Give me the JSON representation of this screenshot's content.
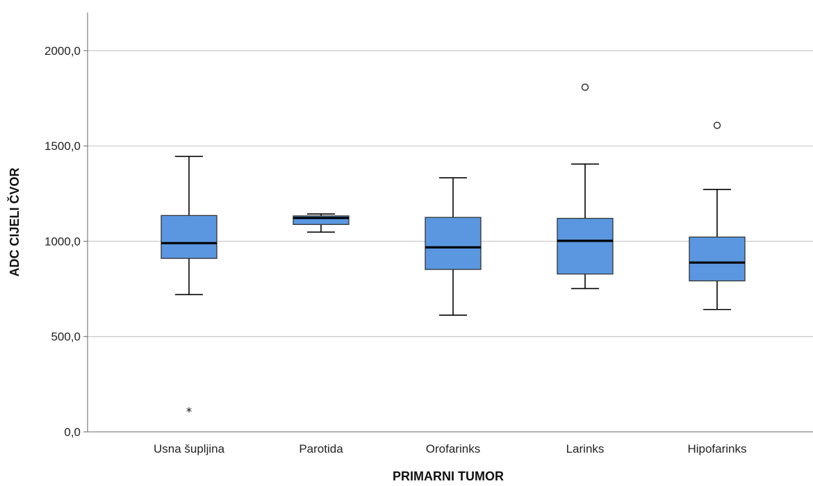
{
  "chart_data": {
    "type": "boxplot",
    "xlabel": "PRIMARNI TUMOR",
    "ylabel": "ADC CIJELI ČVOR",
    "ylim": [
      0,
      2200
    ],
    "yticks": [
      0,
      500,
      1000,
      1500,
      2000
    ],
    "ytick_labels": [
      "0,0",
      "500,0",
      "1000,0",
      "1500,0",
      "2000,0"
    ],
    "grid": "horizontal",
    "box_color": "#5a97e0",
    "categories": [
      "Usna šupljina",
      "Parotida",
      "Orofarinks",
      "Larinks",
      "Hipofarinks"
    ],
    "boxes": [
      {
        "category": "Usna šupljina",
        "whisker_low": 720,
        "q1": 910,
        "median": 990,
        "q3": 1135,
        "whisker_high": 1445,
        "outliers": [],
        "extremes": [
          110
        ]
      },
      {
        "category": "Parotida",
        "whisker_low": 1048,
        "q1": 1088,
        "median": 1122,
        "q3": 1133,
        "whisker_high": 1143,
        "outliers": [],
        "extremes": []
      },
      {
        "category": "Orofarinks",
        "whisker_low": 612,
        "q1": 852,
        "median": 968,
        "q3": 1125,
        "whisker_high": 1333,
        "outliers": [],
        "extremes": []
      },
      {
        "category": "Larinks",
        "whisker_low": 752,
        "q1": 828,
        "median": 1002,
        "q3": 1120,
        "whisker_high": 1405,
        "outliers": [
          1808
        ],
        "extremes": []
      },
      {
        "category": "Hipofarinks",
        "whisker_low": 642,
        "q1": 792,
        "median": 888,
        "q3": 1022,
        "whisker_high": 1272,
        "outliers": [
          1608
        ],
        "extremes": []
      }
    ]
  }
}
